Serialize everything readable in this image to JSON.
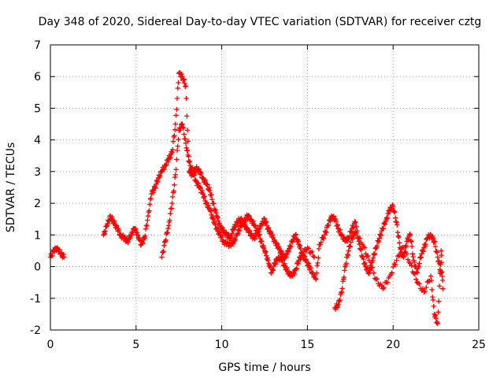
{
  "chart_data": {
    "type": "scatter",
    "title": "Day 348 of 2020, Sidereal Day-to-day VTEC variation (SDTVAR) for receiver cztg",
    "xlabel": "GPS time / hours",
    "ylabel": "SDTVAR / TECUs",
    "xlim": [
      0,
      25
    ],
    "ylim": [
      -2,
      7
    ],
    "xticks": [
      "0",
      "5",
      "10",
      "15",
      "20",
      "25"
    ],
    "yticks": [
      "-2",
      "-1",
      "0",
      "1",
      "2",
      "3",
      "4",
      "5",
      "6",
      "7"
    ],
    "grid": true,
    "marker": "+",
    "series": [
      {
        "name": "SDTVAR",
        "color": "#ff0000",
        "x": [
          0.0,
          0.2,
          0.4,
          0.6,
          0.8,
          3.1,
          3.3,
          3.5,
          3.7,
          3.9,
          4.1,
          4.3,
          4.5,
          4.7,
          4.9,
          5.1,
          5.3,
          5.5,
          5.7,
          5.9,
          6.1,
          6.3,
          6.5,
          6.7,
          6.9,
          7.1,
          7.3,
          7.5,
          7.7,
          7.9,
          8.1,
          8.3,
          8.5,
          8.7,
          8.9,
          9.1,
          9.3,
          9.5,
          9.7,
          9.9,
          10.1,
          10.3,
          10.5,
          10.7,
          10.9,
          11.1,
          11.3,
          11.5,
          11.7,
          11.9,
          12.1,
          12.3,
          12.5,
          12.7,
          12.9,
          13.1,
          13.3,
          13.5,
          13.7,
          13.9,
          14.1,
          14.3,
          14.5,
          14.7,
          14.9,
          15.1,
          15.3,
          15.5,
          15.7,
          16.0,
          16.2,
          16.4,
          16.6,
          16.8,
          17.0,
          17.2,
          17.4,
          17.6,
          17.8,
          18.0,
          18.2,
          18.4,
          18.6,
          18.8,
          19.0,
          19.2,
          19.4,
          19.6,
          19.8,
          20.0,
          20.2,
          20.4,
          20.6,
          20.8,
          21.0,
          21.2,
          21.4,
          21.6,
          21.8,
          22.0,
          22.2,
          22.4,
          22.6,
          22.8
        ],
        "y": [
          0.3,
          0.5,
          0.6,
          0.4,
          0.3,
          1.0,
          1.3,
          1.6,
          1.4,
          1.2,
          1.0,
          0.9,
          0.8,
          1.0,
          1.2,
          1.0,
          0.7,
          0.9,
          1.6,
          2.3,
          2.5,
          2.8,
          3.0,
          3.2,
          3.4,
          3.6,
          4.5,
          6.1,
          6.0,
          5.7,
          3.0,
          2.9,
          3.1,
          3.0,
          2.8,
          2.6,
          2.4,
          2.0,
          1.6,
          1.3,
          1.1,
          1.0,
          0.9,
          1.2,
          1.4,
          1.5,
          1.3,
          1.2,
          1.0,
          0.9,
          1.1,
          1.3,
          1.5,
          1.2,
          1.0,
          0.8,
          0.6,
          0.4,
          0.3,
          0.5,
          0.8,
          1.0,
          0.7,
          0.4,
          0.2,
          0.0,
          -0.2,
          -0.4,
          0.7,
          1.0,
          1.3,
          1.6,
          1.5,
          1.2,
          1.0,
          0.8,
          0.9,
          1.2,
          1.4,
          0.8,
          0.3,
          0.0,
          -0.2,
          0.2,
          0.6,
          0.9,
          1.2,
          1.5,
          1.8,
          1.9,
          1.4,
          0.6,
          0.3,
          0.8,
          1.0,
          0.2,
          -0.2,
          0.3,
          0.6,
          0.9,
          1.0,
          0.8,
          0.3,
          -0.2
        ],
        "extra_x": [
          6.5,
          6.7,
          6.9,
          7.1,
          7.3,
          7.5,
          7.7,
          7.9,
          8.1,
          8.3,
          8.5,
          8.7,
          8.9,
          9.1,
          9.3,
          9.5,
          9.7,
          9.9,
          10.1,
          10.3,
          10.5,
          10.7,
          10.9,
          11.1,
          11.3,
          11.5,
          11.7,
          11.9,
          12.1,
          12.3,
          12.5,
          12.7,
          12.9,
          13.1,
          13.3,
          13.5,
          13.7,
          13.9,
          14.1,
          14.3,
          14.5,
          14.7,
          15.0,
          15.4,
          16.6,
          16.8,
          17.0,
          17.2,
          17.4,
          17.6,
          17.8,
          18.2,
          18.6,
          19.0,
          19.4,
          19.8,
          20.2,
          20.6,
          21.0,
          21.4,
          21.8,
          22.2,
          22.4,
          22.6,
          22.8,
          22.9
        ],
        "extra_y": [
          0.3,
          0.8,
          1.3,
          2.0,
          2.9,
          4.3,
          4.5,
          3.9,
          3.3,
          3.0,
          2.7,
          2.5,
          2.3,
          2.0,
          1.8,
          1.5,
          1.2,
          1.0,
          0.8,
          0.7,
          0.7,
          0.8,
          1.0,
          1.3,
          1.4,
          1.6,
          1.5,
          1.3,
          1.1,
          0.8,
          0.5,
          0.2,
          -0.2,
          0.1,
          0.3,
          0.2,
          0.0,
          -0.2,
          -0.3,
          -0.1,
          0.2,
          0.4,
          0.6,
          0.3,
          -1.3,
          -1.2,
          -0.8,
          0.0,
          0.5,
          0.9,
          1.1,
          0.7,
          0.2,
          -0.4,
          -0.7,
          -0.3,
          0.2,
          0.6,
          0.1,
          -0.5,
          -0.8,
          -0.3,
          -1.5,
          -1.8,
          0.5,
          -0.7
        ]
      }
    ]
  }
}
